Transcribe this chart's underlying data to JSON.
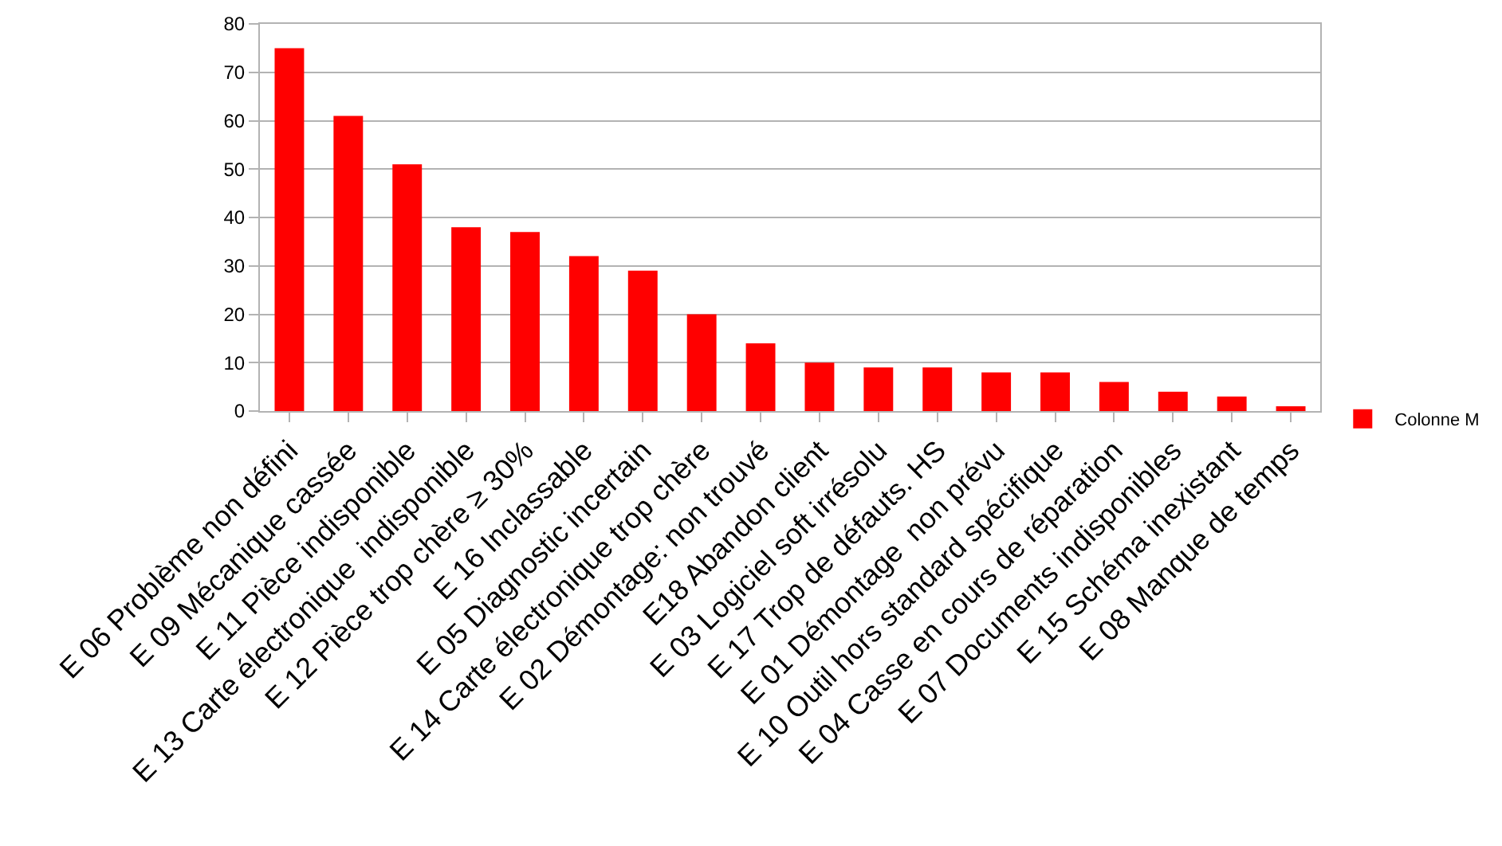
{
  "chart_data": {
    "type": "bar",
    "categories": [
      "E 06 Problème non défini",
      "E 09 Mécanique cassée",
      "E 11 Pièce indisponible",
      "E 13 Carte électronique  indisponible",
      "E 12 Pièce trop chère ≥ 30%",
      "E 16 Inclassable",
      "E 05 Diagnostic incertain",
      "E 14 Carte électronique trop chère",
      "E 02 Démontage: non trouvé",
      "E18 Abandon client",
      "E 03 Logiciel soft irrésolu",
      "E 17 Trop de défauts. HS",
      "E 01 Démontage  non prévu",
      "E 10 Outil hors standard spécifique",
      "E 04 Casse en cours de réparation",
      "E 07 Documents indisponibles",
      "E 15 Schéma inexistant",
      "E 08 Manque de temps"
    ],
    "series": [
      {
        "name": "Colonne M",
        "color": "#ff0000",
        "values": [
          75,
          61,
          51,
          38,
          37,
          32,
          29,
          20,
          14,
          10,
          9,
          9,
          8,
          8,
          6,
          4,
          3,
          1
        ]
      }
    ],
    "ylim": [
      0,
      80
    ],
    "yticks": [
      0,
      10,
      20,
      30,
      40,
      50,
      60,
      70,
      80
    ],
    "grid": "y",
    "legend": "right"
  }
}
